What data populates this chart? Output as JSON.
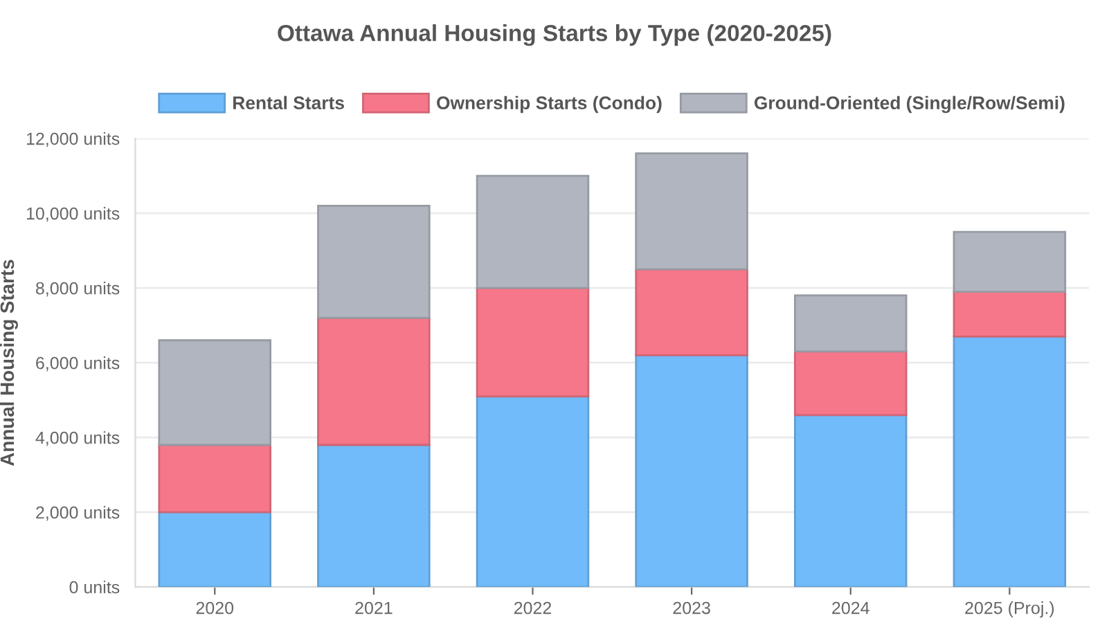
{
  "chart_data": {
    "type": "bar",
    "title": "Ottawa Annual Housing Starts by Type (2020-2025)",
    "ylabel": "Annual Housing Starts",
    "categories": [
      "2020",
      "2021",
      "2022",
      "2023",
      "2024",
      "2025 (Proj.)"
    ],
    "stacked": true,
    "series": [
      {
        "name": "Rental Starts",
        "color": "#71bbfa",
        "values": [
          2000,
          3800,
          5100,
          6200,
          4600,
          6700
        ]
      },
      {
        "name": "Ownership Starts (Condo)",
        "color": "#f67789",
        "values": [
          1800,
          3400,
          2900,
          2300,
          1700,
          1200
        ]
      },
      {
        "name": "Ground-Oriented (Single/Row/Semi)",
        "color": "#b1b5bf",
        "values": [
          2800,
          3000,
          3000,
          3100,
          1500,
          1600
        ]
      }
    ],
    "ylim": [
      0,
      12000
    ],
    "yticks": [
      {
        "value": 0,
        "label": "0 units"
      },
      {
        "value": 2000,
        "label": "2,000 units"
      },
      {
        "value": 4000,
        "label": "4,000 units"
      },
      {
        "value": 6000,
        "label": "6,000 units"
      },
      {
        "value": 8000,
        "label": "8,000 units"
      },
      {
        "value": 10000,
        "label": "10,000 units"
      },
      {
        "value": 12000,
        "label": "12,000 units"
      }
    ],
    "grid": "y",
    "legend": "top"
  }
}
